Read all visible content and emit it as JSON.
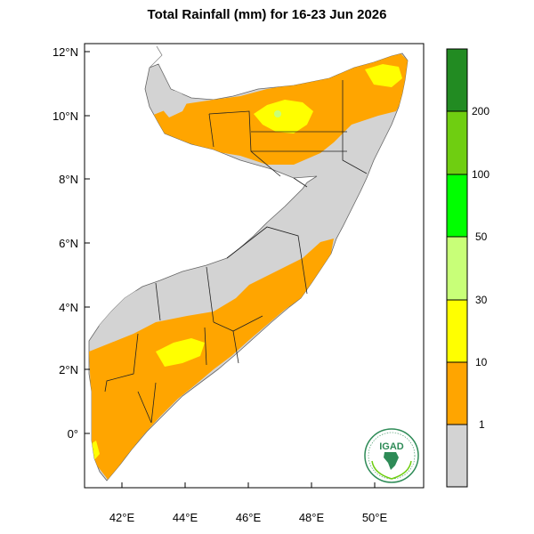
{
  "title": "Total Rainfall (mm) for 16-23 Jun 2026",
  "map": {
    "lat_ticks": [
      "12°N",
      "10°N",
      "8°N",
      "6°N",
      "4°N",
      "2°N",
      "0°"
    ],
    "lon_ticks": [
      "42°E",
      "44°E",
      "46°E",
      "48°E",
      "50°E"
    ],
    "lon_range": [
      40.9,
      51.6
    ],
    "lat_range": [
      -1.75,
      12.2
    ]
  },
  "colorbar": {
    "labels": [
      "1",
      "10",
      "30",
      "50",
      "100",
      "200"
    ],
    "colors": [
      "#d3d3d3",
      "#ffa500",
      "#ffff00",
      "#c8ff78",
      "#00ff00",
      "#6fce11",
      "#228b22"
    ]
  },
  "logo": {
    "text": "IGAD"
  },
  "colors": {
    "land": "#d3d3d3",
    "rain_1_10": "#ffa500",
    "rain_10_30": "#ffff00",
    "rain_30_50": "#c8ff78"
  }
}
